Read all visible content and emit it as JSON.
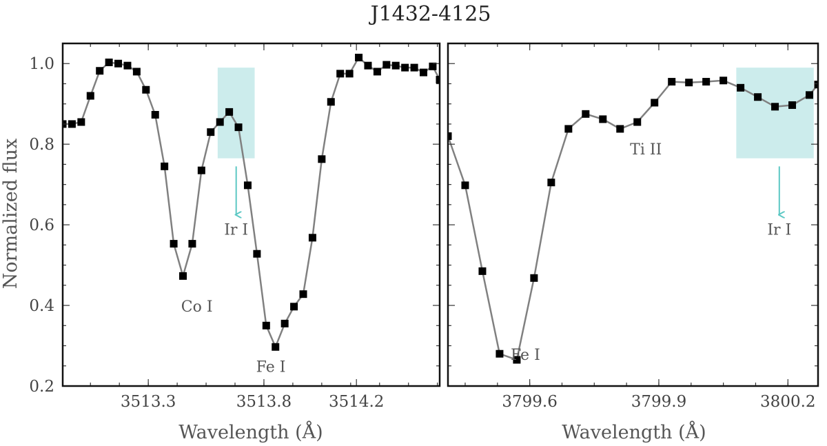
{
  "title": "J1432-4125",
  "chart_data": [
    {
      "type": "line",
      "xlabel": "Wavelength (Å)",
      "ylabel": "Normalized flux",
      "xlim": [
        3512.93,
        3514.56
      ],
      "ylim": [
        0.2,
        1.05
      ],
      "xticks": [
        3513.3,
        3513.8,
        3514.2
      ],
      "xtick_labels": [
        "3513.3",
        "3513.8",
        "3514.2"
      ],
      "yticks": [
        0.2,
        0.4,
        0.6,
        0.8,
        1.0
      ],
      "ytick_labels": [
        "0.2",
        "0.4",
        "0.6",
        "0.8",
        "1.0"
      ],
      "series": [
        {
          "x": [
            3512.93,
            3512.97,
            3513.01,
            3513.05,
            3513.09,
            3513.13,
            3513.17,
            3513.21,
            3513.25,
            3513.29,
            3513.33,
            3513.37,
            3513.41,
            3513.45,
            3513.49,
            3513.53,
            3513.57,
            3513.61,
            3513.65,
            3513.69,
            3513.73,
            3513.77,
            3513.81,
            3513.85,
            3513.89,
            3513.93,
            3513.97,
            3514.01,
            3514.05,
            3514.09,
            3514.13,
            3514.17,
            3514.21,
            3514.25,
            3514.29,
            3514.33,
            3514.37,
            3514.41,
            3514.45,
            3514.49,
            3514.53,
            3514.56
          ],
          "y": [
            0.85,
            0.85,
            0.855,
            0.92,
            0.982,
            1.003,
            1.0,
            0.995,
            0.98,
            0.935,
            0.873,
            0.745,
            0.553,
            0.473,
            0.553,
            0.735,
            0.83,
            0.855,
            0.88,
            0.842,
            0.698,
            0.528,
            0.35,
            0.297,
            0.355,
            0.397,
            0.428,
            0.568,
            0.763,
            0.905,
            0.975,
            0.975,
            1.015,
            0.995,
            0.98,
            0.997,
            0.995,
            0.99,
            0.99,
            0.978,
            0.993,
            0.96
          ]
        }
      ],
      "highlight": {
        "x": [
          3513.6,
          3513.76
        ],
        "y": [
          0.765,
          0.99
        ]
      },
      "annotations": [
        {
          "text": "Co I",
          "x": 3513.51,
          "y": 0.385
        },
        {
          "text": "Fe I",
          "x": 3513.83,
          "y": 0.235
        },
        {
          "text": "Ir I",
          "x": 3513.68,
          "y": 0.575
        }
      ],
      "arrow": {
        "x": 3513.68,
        "y_from": 0.745,
        "y_to": 0.625
      }
    },
    {
      "type": "line",
      "xlabel": "Wavelength (Å)",
      "ylabel": "",
      "xlim": [
        3799.41,
        3800.27
      ],
      "ylim": [
        0.2,
        1.05
      ],
      "xticks": [
        3799.6,
        3799.9,
        3800.2
      ],
      "xtick_labels": [
        "3799.6",
        "3799.9",
        "3800.2"
      ],
      "yticks": [
        0.2,
        0.4,
        0.6,
        0.8,
        1.0
      ],
      "ytick_labels": [],
      "series": [
        {
          "x": [
            3799.41,
            3799.45,
            3799.49,
            3799.53,
            3799.57,
            3799.61,
            3799.65,
            3799.69,
            3799.73,
            3799.77,
            3799.81,
            3799.85,
            3799.89,
            3799.93,
            3799.97,
            3800.01,
            3800.05,
            3800.09,
            3800.13,
            3800.17,
            3800.21,
            3800.25,
            3800.27
          ],
          "y": [
            0.82,
            0.698,
            0.485,
            0.28,
            0.265,
            0.468,
            0.705,
            0.838,
            0.875,
            0.862,
            0.838,
            0.855,
            0.903,
            0.955,
            0.953,
            0.955,
            0.958,
            0.94,
            0.917,
            0.893,
            0.897,
            0.922,
            0.948
          ]
        }
      ],
      "highlight": {
        "x": [
          3800.08,
          3800.26
        ],
        "y": [
          0.765,
          0.99
        ]
      },
      "annotations": [
        {
          "text": "Ti II",
          "x": 3799.87,
          "y": 0.775
        },
        {
          "text": "Fe I",
          "x": 3799.59,
          "y": 0.265
        },
        {
          "text": "Ir I",
          "x": 3800.18,
          "y": 0.575
        }
      ],
      "arrow": {
        "x": 3800.18,
        "y_from": 0.745,
        "y_to": 0.625
      }
    }
  ],
  "colors": {
    "highlight": "#ccecec",
    "arrow": "#5cc8c4",
    "line": "#808080",
    "marker": "#000000"
  }
}
